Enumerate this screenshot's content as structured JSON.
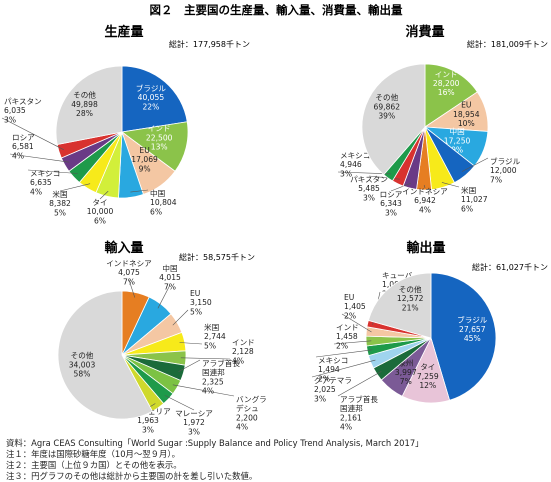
{
  "figure_title": "図２　主要国の生産量、輸入量、消費量、輸出量",
  "chart_data": [
    {
      "type": "pie",
      "title": "生産量",
      "total_label": "総計：177,958千トン",
      "slices": [
        {
          "name": "ブラジル",
          "value": "40,055",
          "pct": "22%",
          "share": 22.5,
          "color": "#1565c0",
          "text_color": "#ffffff"
        },
        {
          "name": "インド",
          "value": "22,500",
          "pct": "13%",
          "share": 12.6,
          "color": "#8bc34a",
          "text_color": "#ffffff"
        },
        {
          "name": "EU",
          "value": "17,069",
          "pct": "9%",
          "share": 9.6,
          "color": "#f4c7a3",
          "text_color": "#222222"
        },
        {
          "name": "中国",
          "value": "10,804",
          "pct": "6%",
          "share": 6.1,
          "color": "#29a8e0",
          "text_color": "#222222"
        },
        {
          "name": "タイ",
          "value": "10,000",
          "pct": "6%",
          "share": 5.6,
          "color": "#d2ef3a",
          "text_color": "#222222"
        },
        {
          "name": "米国",
          "value": "8,382",
          "pct": "5%",
          "share": 4.7,
          "color": "#f7ea1a",
          "text_color": "#222222"
        },
        {
          "name": "メキシコ",
          "value": "6,635",
          "pct": "4%",
          "share": 3.7,
          "color": "#1e9a4a",
          "text_color": "#222222"
        },
        {
          "name": "ロシア",
          "value": "6,581",
          "pct": "4%",
          "share": 3.7,
          "color": "#6a3a86",
          "text_color": "#222222"
        },
        {
          "name": "パキスタン",
          "value": "6,035",
          "pct": "3%",
          "share": 3.4,
          "color": "#d8322f",
          "text_color": "#222222"
        },
        {
          "name": "その他",
          "value": "49,898",
          "pct": "28%",
          "share": 28.0,
          "color": "#d9d9d9",
          "text_color": "#222222"
        }
      ]
    },
    {
      "type": "pie",
      "title": "消費量",
      "total_label": "総計：181,009千トン",
      "slices": [
        {
          "name": "インド",
          "value": "28,200",
          "pct": "16%",
          "share": 15.6,
          "color": "#8bc34a",
          "text_color": "#ffffff"
        },
        {
          "name": "EU",
          "value": "18,954",
          "pct": "10%",
          "share": 10.5,
          "color": "#f4c7a3",
          "text_color": "#222222"
        },
        {
          "name": "中国",
          "value": "17,250",
          "pct": "9%",
          "share": 9.5,
          "color": "#29a8e0",
          "text_color": "#ffffff"
        },
        {
          "name": "ブラジル",
          "value": "12,000",
          "pct": "7%",
          "share": 6.6,
          "color": "#1565c0",
          "text_color": "#222222"
        },
        {
          "name": "米国",
          "value": "11,027",
          "pct": "6%",
          "share": 6.1,
          "color": "#f7ea1a",
          "text_color": "#222222"
        },
        {
          "name": "インドネシア",
          "value": "6,942",
          "pct": "4%",
          "share": 3.8,
          "color": "#e67e22",
          "text_color": "#222222"
        },
        {
          "name": "ロシア",
          "value": "6,343",
          "pct": "3%",
          "share": 3.5,
          "color": "#6a3a86",
          "text_color": "#222222"
        },
        {
          "name": "パキスタン",
          "value": "5,485",
          "pct": "3%",
          "share": 3.0,
          "color": "#d8322f",
          "text_color": "#222222"
        },
        {
          "name": "メキシコ",
          "value": "4,946",
          "pct": "3%",
          "share": 2.7,
          "color": "#1e9a4a",
          "text_color": "#222222"
        },
        {
          "name": "その他",
          "value": "69,862",
          "pct": "39%",
          "share": 38.6,
          "color": "#d9d9d9",
          "text_color": "#222222"
        }
      ]
    },
    {
      "type": "pie",
      "title": "輸入量",
      "total_label": "総計：58,575千トン",
      "slices": [
        {
          "name": "インドネシア",
          "value": "4,075",
          "pct": "7%",
          "share": 7.0,
          "color": "#e67e22",
          "text_color": "#222222"
        },
        {
          "name": "中国",
          "value": "4,015",
          "pct": "7%",
          "share": 6.9,
          "color": "#29a8e0",
          "text_color": "#222222"
        },
        {
          "name": "EU",
          "value": "3,150",
          "pct": "5%",
          "share": 5.4,
          "color": "#f4c7a3",
          "text_color": "#222222"
        },
        {
          "name": "米国",
          "value": "2,744",
          "pct": "5%",
          "share": 4.7,
          "color": "#f7ea1a",
          "text_color": "#222222"
        },
        {
          "name": "インド",
          "value": "2,128",
          "pct": "4%",
          "share": 3.6,
          "color": "#8bc34a",
          "text_color": "#222222"
        },
        {
          "name": "アラブ首長国連邦",
          "value": "2,325",
          "pct": "4%",
          "share": 4.0,
          "color": "#1b6b3a",
          "text_color": "#222222"
        },
        {
          "name": "バングラデシュ",
          "value": "2,200",
          "pct": "4%",
          "share": 3.8,
          "color": "#7cc243",
          "text_color": "#222222"
        },
        {
          "name": "マレーシア",
          "value": "1,972",
          "pct": "3%",
          "share": 3.4,
          "color": "#1e9a4a",
          "text_color": "#222222"
        },
        {
          "name": "アルジェリア",
          "value": "1,963",
          "pct": "3%",
          "share": 3.4,
          "color": "#cfd92c",
          "text_color": "#222222"
        },
        {
          "name": "その他",
          "value": "34,003",
          "pct": "58%",
          "share": 58.0,
          "color": "#d9d9d9",
          "text_color": "#222222"
        }
      ]
    },
    {
      "type": "pie",
      "title": "輸出量",
      "total_label": "総計：61,027千トン",
      "slices": [
        {
          "name": "ブラジル",
          "value": "27,657",
          "pct": "45%",
          "share": 45.3,
          "color": "#1565c0",
          "text_color": "#ffffff"
        },
        {
          "name": "タイ",
          "value": "7,259",
          "pct": "12%",
          "share": 11.9,
          "color": "#e8c4d8",
          "text_color": "#222222"
        },
        {
          "name": "豪州",
          "value": "3,997",
          "pct": "7%",
          "share": 6.5,
          "color": "#7b5a96",
          "text_color": "#222222"
        },
        {
          "name": "アラブ首長国連邦",
          "value": "2,161",
          "pct": "4%",
          "share": 3.5,
          "color": "#1b6b3a",
          "text_color": "#222222"
        },
        {
          "name": "グアテマラ",
          "value": "2,025",
          "pct": "3%",
          "share": 3.3,
          "color": "#9fd4ee",
          "text_color": "#222222"
        },
        {
          "name": "メキシコ",
          "value": "1,494",
          "pct": "2%",
          "share": 2.4,
          "color": "#1e9a4a",
          "text_color": "#222222"
        },
        {
          "name": "インド",
          "value": "1,458",
          "pct": "2%",
          "share": 2.4,
          "color": "#8bc34a",
          "text_color": "#222222"
        },
        {
          "name": "EU",
          "value": "1,405",
          "pct": "2%",
          "share": 2.3,
          "color": "#f4c7a3",
          "text_color": "#222222"
        },
        {
          "name": "キューバ",
          "value": "1,000",
          "pct": "2%",
          "share": 1.6,
          "color": "#d8322f",
          "text_color": "#222222"
        },
        {
          "name": "その他",
          "value": "12,572",
          "pct": "21%",
          "share": 20.6,
          "color": "#d9d9d9",
          "text_color": "#222222"
        }
      ]
    }
  ],
  "notes": [
    "資料：Agra CEAS Consulting「World Sugar :Supply Balance and Policy Trend Analysis, March 2017」",
    "注１：年度は国際砂糖年度（10月～翌９月）。",
    "注２：主要国（上位９カ国）とその他を表示。",
    "注３：円グラフのその他は総計から主要国の計を差し引いた数値。"
  ]
}
